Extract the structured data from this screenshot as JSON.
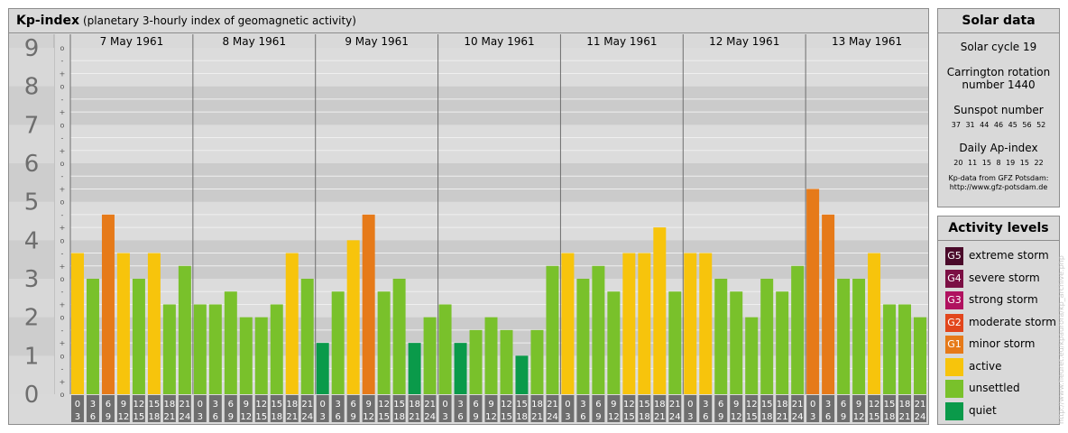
{
  "header": {
    "title": "Kp-index",
    "subtitle": "(planetary 3-hourly index of geomagnetic activity)"
  },
  "chart_data": {
    "type": "bar",
    "title": "Kp-index",
    "subtitle": "(planetary 3-hourly index of geomagnetic activity)",
    "ylim": [
      0,
      9
    ],
    "y_tick_labels": [
      "0",
      "1",
      "2",
      "3",
      "4",
      "5",
      "6",
      "7",
      "8",
      "9"
    ],
    "sub_tick_labels": [
      "o",
      "+",
      "-"
    ],
    "days": [
      "7 May 1961",
      "8 May 1961",
      "9 May 1961",
      "10 May 1961",
      "11 May 1961",
      "12 May 1961",
      "13 May 1961"
    ],
    "interval_start_labels": [
      "0",
      "3",
      "6",
      "9",
      "12",
      "15",
      "18",
      "21"
    ],
    "interval_end_labels": [
      "3",
      "6",
      "9",
      "12",
      "15",
      "18",
      "21",
      "24"
    ],
    "values": [
      [
        3.667,
        3.0,
        4.667,
        3.667,
        3.0,
        3.667,
        2.333,
        3.333
      ],
      [
        2.333,
        2.333,
        2.667,
        2.0,
        2.0,
        2.333,
        3.667,
        3.0
      ],
      [
        1.333,
        2.667,
        4.0,
        4.667,
        2.667,
        3.0,
        1.333,
        2.0
      ],
      [
        2.333,
        1.333,
        1.667,
        2.0,
        1.667,
        1.0,
        1.667,
        3.333
      ],
      [
        3.667,
        3.0,
        3.333,
        2.667,
        3.667,
        3.667,
        4.333,
        2.667
      ],
      [
        3.667,
        3.667,
        3.0,
        2.667,
        2.0,
        3.0,
        2.667,
        3.333
      ],
      [
        5.333,
        4.667,
        3.0,
        3.0,
        3.667,
        2.333,
        2.333,
        2.0
      ]
    ],
    "colors": {
      "quiet": "#0a9a4a",
      "unsettled": "#79c12b",
      "active": "#f7c40c",
      "minor_storm": "#e67a19",
      "moderate_storm": "#e2461c",
      "strong_storm": "#b0115f",
      "severe_storm": "#7b0f44",
      "extreme_storm": "#4a0a2a"
    }
  },
  "solar_data": {
    "title": "Solar data",
    "solar_cycle": "Solar cycle 19",
    "carrington_line1": "Carrington rotation",
    "carrington_line2": "number 1440",
    "sunspot_label": "Sunspot number",
    "sunspot_values": "37 31 44 46 45 56 52",
    "ap_label": "Daily Ap-index",
    "ap_values": "20 11 15 8 19 15 22",
    "credit_line1": "Kp-data from GFZ Potsdam:",
    "credit_line2": "http://www.gfz-potsdam.de"
  },
  "activity_levels": {
    "title": "Activity levels",
    "items": [
      {
        "code": "G5",
        "label": "extreme storm",
        "color": "#4a0a2a"
      },
      {
        "code": "G4",
        "label": "severe storm",
        "color": "#7b0f44"
      },
      {
        "code": "G3",
        "label": "strong storm",
        "color": "#b0115f"
      },
      {
        "code": "G2",
        "label": "moderate storm",
        "color": "#e2461c"
      },
      {
        "code": "G1",
        "label": "minor storm",
        "color": "#e67a19"
      },
      {
        "code": "",
        "label": "active",
        "color": "#f7c40c"
      },
      {
        "code": "",
        "label": "unsettled",
        "color": "#79c12b"
      },
      {
        "code": "",
        "label": "quiet",
        "color": "#0a9a4a"
      }
    ]
  },
  "side_credit": "http://www.fleuret.eu/kpaurora/kp_archive.php"
}
